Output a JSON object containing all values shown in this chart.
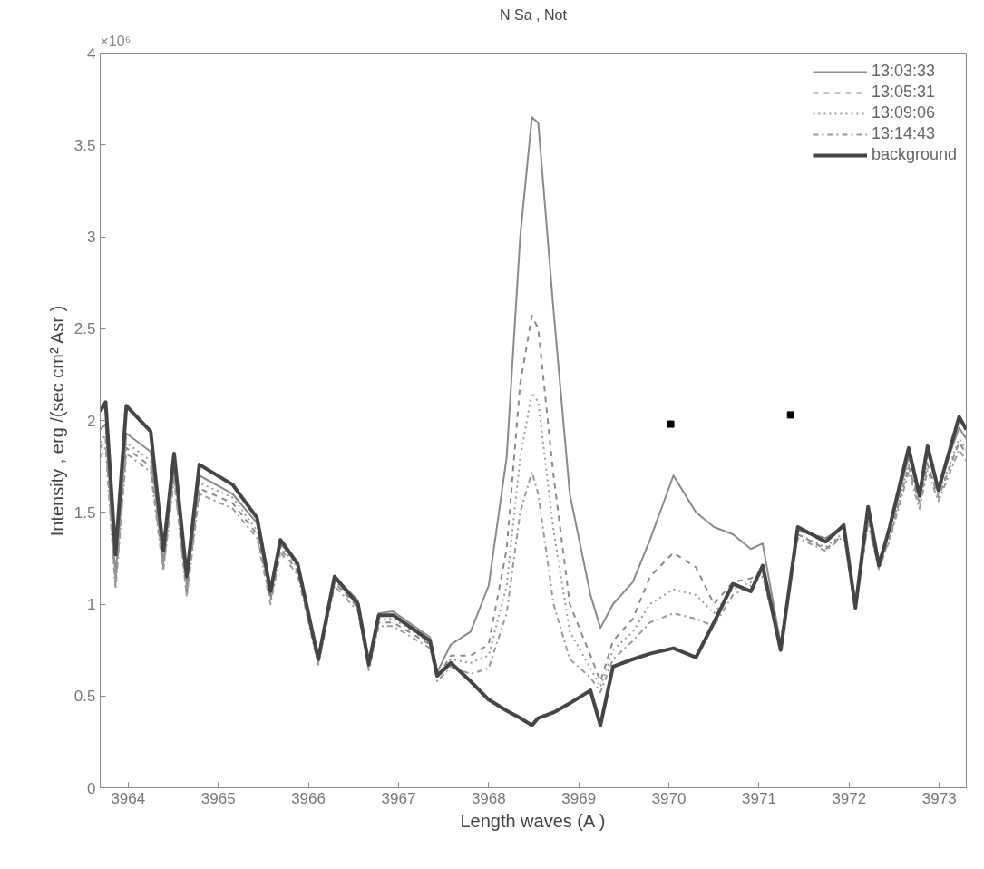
{
  "chart_data": {
    "type": "line",
    "title": "N Sa , Not",
    "xlabel": "Length waves (A )",
    "ylabel": "Intensity , erg /(sec cm² Asr )",
    "annotations": [
      "×10⁶"
    ],
    "x": [
      3963.69,
      3963.75,
      3963.86,
      3963.98,
      3964.25,
      3964.39,
      3964.51,
      3964.65,
      3964.79,
      3965.16,
      3965.43,
      3965.58,
      3965.69,
      3965.88,
      3966.11,
      3966.29,
      3966.55,
      3966.67,
      3966.78,
      3966.94,
      3967.35,
      3967.43,
      3967.58,
      3967.8,
      3968.0,
      3968.2,
      3968.35,
      3968.48,
      3968.55,
      3968.72,
      3968.9,
      3969.13,
      3969.24,
      3969.38,
      3969.6,
      3969.79,
      3970.05,
      3970.3,
      3970.5,
      3970.71,
      3970.91,
      3971.04,
      3971.24,
      3971.43,
      3971.74,
      3971.94,
      3972.07,
      3972.21,
      3972.33,
      3972.45,
      3972.66,
      3972.78,
      3972.87,
      3972.99,
      3973.22,
      3973.3
    ],
    "series": [
      {
        "name": "13:03:33",
        "color": "#8a8a8a",
        "line_style": "solid",
        "values": [
          1.95,
          1.98,
          1.15,
          1.93,
          1.83,
          1.22,
          1.75,
          1.1,
          1.7,
          1.6,
          1.44,
          1.05,
          1.33,
          1.22,
          0.72,
          1.15,
          1.02,
          0.7,
          0.95,
          0.96,
          0.82,
          0.63,
          0.78,
          0.85,
          1.1,
          1.8,
          3.0,
          3.65,
          3.62,
          2.6,
          1.6,
          1.05,
          0.87,
          1.0,
          1.12,
          1.35,
          1.7,
          1.5,
          1.42,
          1.38,
          1.3,
          1.33,
          0.78,
          1.4,
          1.36,
          1.42,
          1.0,
          1.5,
          1.24,
          1.4,
          1.8,
          1.62,
          1.82,
          1.64,
          1.96,
          1.9
        ]
      },
      {
        "name": "13:05:31",
        "color": "#8a8a8a",
        "line_style": "dashed",
        "values": [
          1.85,
          1.9,
          1.1,
          1.85,
          1.75,
          1.2,
          1.7,
          1.05,
          1.63,
          1.55,
          1.38,
          1.02,
          1.3,
          1.18,
          0.68,
          1.12,
          0.98,
          0.66,
          0.9,
          0.9,
          0.78,
          0.6,
          0.72,
          0.72,
          0.78,
          1.3,
          2.2,
          2.57,
          2.5,
          1.7,
          1.0,
          0.72,
          0.58,
          0.8,
          0.92,
          1.15,
          1.28,
          1.2,
          1.0,
          1.12,
          1.14,
          1.18,
          0.8,
          1.38,
          1.3,
          1.38,
          0.98,
          1.45,
          1.2,
          1.36,
          1.75,
          1.55,
          1.76,
          1.58,
          1.88,
          1.82
        ]
      },
      {
        "name": "13:09:06",
        "color": "#9a9a9a",
        "line_style": "dotted",
        "values": [
          1.88,
          1.92,
          1.12,
          1.88,
          1.78,
          1.22,
          1.72,
          1.08,
          1.66,
          1.58,
          1.4,
          1.04,
          1.32,
          1.2,
          0.7,
          1.13,
          0.99,
          0.67,
          0.92,
          0.92,
          0.79,
          0.62,
          0.7,
          0.68,
          0.72,
          1.1,
          1.8,
          2.15,
          2.1,
          1.4,
          0.85,
          0.65,
          0.55,
          0.75,
          0.85,
          1.0,
          1.08,
          1.05,
          0.95,
          1.08,
          1.12,
          1.17,
          0.79,
          1.38,
          1.31,
          1.39,
          0.99,
          1.46,
          1.21,
          1.37,
          1.76,
          1.56,
          1.77,
          1.59,
          1.9,
          1.84
        ]
      },
      {
        "name": "13:14:43",
        "color": "#9a9a9a",
        "line_style": "dashdot",
        "values": [
          1.8,
          1.85,
          1.08,
          1.82,
          1.72,
          1.18,
          1.68,
          1.04,
          1.6,
          1.52,
          1.36,
          1.0,
          1.28,
          1.16,
          0.67,
          1.1,
          0.96,
          0.64,
          0.88,
          0.88,
          0.76,
          0.58,
          0.66,
          0.62,
          0.65,
          0.95,
          1.5,
          1.72,
          1.6,
          1.0,
          0.7,
          0.6,
          0.52,
          0.7,
          0.8,
          0.9,
          0.95,
          0.92,
          0.88,
          1.05,
          1.1,
          1.15,
          0.77,
          1.36,
          1.29,
          1.37,
          0.97,
          1.44,
          1.19,
          1.35,
          1.72,
          1.52,
          1.73,
          1.56,
          1.84,
          1.78
        ]
      },
      {
        "name": "background",
        "color": "#454545",
        "line_style": "solid",
        "values": [
          2.05,
          2.1,
          1.27,
          2.08,
          1.94,
          1.29,
          1.82,
          1.15,
          1.76,
          1.65,
          1.47,
          1.07,
          1.35,
          1.22,
          0.7,
          1.15,
          1.0,
          0.67,
          0.94,
          0.94,
          0.8,
          0.61,
          0.68,
          0.58,
          0.48,
          0.42,
          0.38,
          0.34,
          0.38,
          0.41,
          0.46,
          0.53,
          0.34,
          0.66,
          0.7,
          0.73,
          0.76,
          0.71,
          0.9,
          1.11,
          1.07,
          1.21,
          0.75,
          1.42,
          1.34,
          1.43,
          0.98,
          1.53,
          1.21,
          1.42,
          1.85,
          1.59,
          1.86,
          1.62,
          2.02,
          1.95
        ]
      },
      {
        "type": "scatter",
        "marker": "square",
        "color": "#000000",
        "x": [
          3970.02,
          3971.35
        ],
        "values": [
          1.98,
          2.03
        ]
      }
    ],
    "xlim": [
      3963.69,
      3973.3
    ],
    "xticks": [
      3964,
      3965,
      3966,
      3967,
      3968,
      3969,
      3970,
      3971,
      3972,
      3973
    ],
    "ylim": [
      0,
      4
    ],
    "yticks": [
      0,
      0.5,
      1,
      1.5,
      2,
      2.5,
      3,
      3.5,
      4
    ],
    "grid": false,
    "legend": "top right",
    "marker": "none"
  }
}
